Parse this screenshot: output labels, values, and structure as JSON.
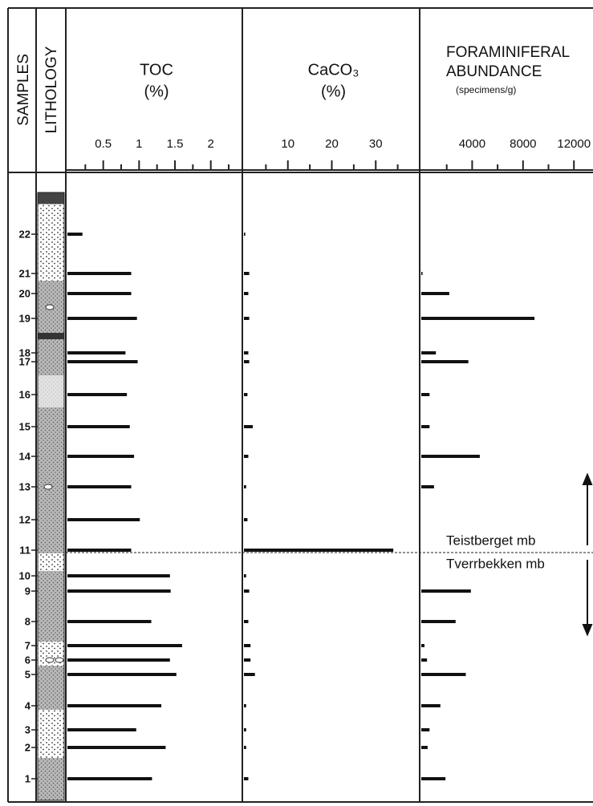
{
  "samples_label": "SAMPLES",
  "lithology_label": "LITHOLOGY",
  "chart_data": [
    {
      "type": "bar",
      "orientation": "horizontal",
      "title": "TOC",
      "subtitle": "(%)",
      "categories": [
        "22",
        "21",
        "20",
        "19",
        "18",
        "17",
        "16",
        "15",
        "14",
        "13",
        "12",
        "11",
        "10",
        "9",
        "8",
        "7",
        "6",
        "5",
        "4",
        "3",
        "2",
        "1"
      ],
      "values": [
        0.21,
        0.89,
        0.89,
        0.97,
        0.81,
        0.98,
        0.83,
        0.87,
        0.93,
        0.89,
        1.01,
        0.89,
        1.43,
        1.44,
        1.17,
        1.6,
        1.43,
        1.52,
        1.31,
        0.96,
        1.37,
        1.18
      ],
      "color": "#111111",
      "xlim": [
        0,
        2.44
      ],
      "xticks": [
        0.5,
        1,
        1.5,
        2
      ],
      "xticks_minor": [
        0.25,
        0.75,
        1.25,
        1.75,
        2.25
      ]
    },
    {
      "type": "bar",
      "orientation": "horizontal",
      "title": "CaCO₃",
      "subtitle": "(%)",
      "values": [
        0.3,
        1.2,
        1,
        1.2,
        1,
        1.2,
        0.8,
        2,
        1,
        0.5,
        0.8,
        34,
        0.5,
        1.2,
        1,
        1.5,
        1.5,
        2.5,
        0.5,
        0.5,
        0.5,
        1
      ],
      "color": "#111111",
      "xlim": [
        0,
        40
      ],
      "xticks": [
        10,
        20,
        30
      ],
      "xticks_minor": [
        5,
        15,
        25,
        35
      ]
    },
    {
      "type": "bar",
      "orientation": "horizontal",
      "title": "FORAMINIFERAL",
      "subtitle": "ABUNDANCE",
      "unit_label": "(specimens/g)",
      "values": [
        null,
        100,
        2200,
        8900,
        1150,
        3700,
        650,
        650,
        4600,
        1000,
        null,
        null,
        null,
        3900,
        2700,
        250,
        450,
        3500,
        1500,
        650,
        500,
        1900
      ],
      "color": "#111111",
      "xlim": [
        0,
        13500
      ],
      "xticks": [
        4000,
        8000,
        12000
      ],
      "xticks_minor": [
        2000,
        6000,
        10000
      ]
    }
  ],
  "annotations": {
    "upper_member": "Teistberget mb",
    "lower_member": "Tverrbekken mb"
  }
}
